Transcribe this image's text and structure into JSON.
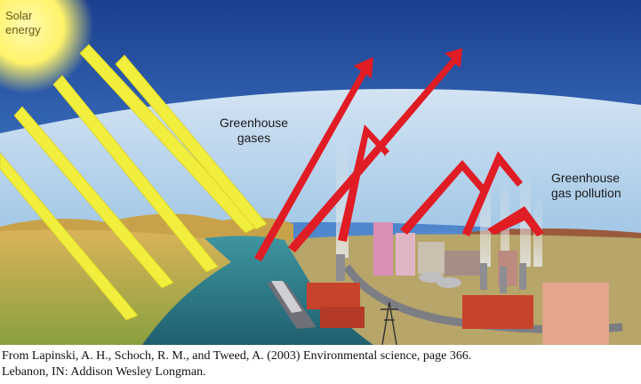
{
  "labels": {
    "solar_line1": "Solar",
    "solar_line2": "energy",
    "greenhouse_line1": "Greenhouse",
    "greenhouse_line2": "gases",
    "pollution_line1": "Greenhouse",
    "pollution_line2": "gas pollution"
  },
  "caption": {
    "line1": "From Lapinski, A. H., Schoch, R. M., and Tweed, A. (2003) Environmental science, page 366.",
    "line2": "Lebanon, IN: Addison Wesley Longman."
  },
  "colors": {
    "sky_top": "#1b3f8f",
    "sky_mid": "#3f78c6",
    "atmosphere": "#bcd9ef",
    "sun": "#fff36a",
    "solar_ray": "#f2ee3e",
    "heat_arrow": "#e01c24",
    "water": "#2f7f8a",
    "land": "#c9a24e",
    "city_pink": "#d98fb6",
    "factory_red": "#c8432c"
  }
}
